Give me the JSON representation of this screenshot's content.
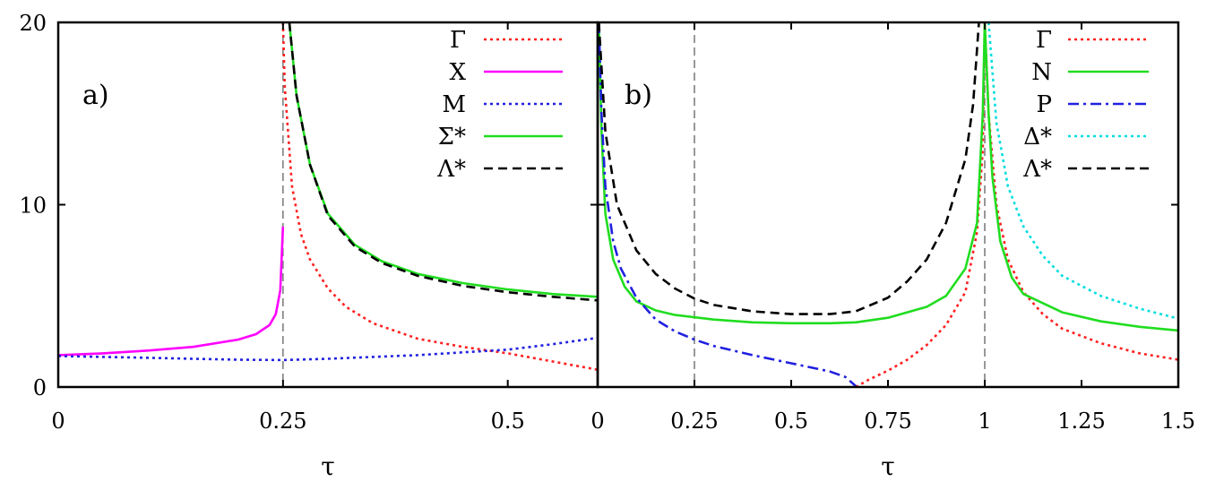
{
  "chart_data": [
    {
      "type": "line",
      "panel_label": "a)",
      "xlabel": "τ",
      "ylabel": "",
      "xlim": [
        0,
        0.6
      ],
      "ylim": [
        0,
        20
      ],
      "xticks": [
        {
          "value": 0,
          "label": "0"
        },
        {
          "value": 0.25,
          "label": "0.25"
        },
        {
          "value": 0.5,
          "label": "0.5"
        }
      ],
      "yticks": [
        {
          "value": 0,
          "label": "0"
        },
        {
          "value": 10,
          "label": "10"
        },
        {
          "value": 20,
          "label": "20"
        }
      ],
      "vlines": [
        0.25
      ],
      "legend_position": "top-right",
      "series": [
        {
          "name": "Γ",
          "color": "#ff2020",
          "dash": "dotted",
          "points": [
            [
              0.25,
              20
            ],
            [
              0.252,
              16.5
            ],
            [
              0.26,
              11.0
            ],
            [
              0.27,
              8.4
            ],
            [
              0.28,
              7.0
            ],
            [
              0.3,
              5.4
            ],
            [
              0.32,
              4.4
            ],
            [
              0.35,
              3.5
            ],
            [
              0.4,
              2.65
            ],
            [
              0.45,
              2.2
            ],
            [
              0.5,
              1.85
            ],
            [
              0.55,
              1.4
            ],
            [
              0.6,
              0.95
            ]
          ]
        },
        {
          "name": "X",
          "color": "#ff00ff",
          "dash": "solid",
          "points": [
            [
              0,
              1.75
            ],
            [
              0.05,
              1.85
            ],
            [
              0.1,
              2.0
            ],
            [
              0.15,
              2.2
            ],
            [
              0.2,
              2.6
            ],
            [
              0.22,
              2.9
            ],
            [
              0.235,
              3.4
            ],
            [
              0.242,
              4.0
            ],
            [
              0.247,
              5.3
            ],
            [
              0.25,
              8.8
            ]
          ]
        },
        {
          "name": "M",
          "color": "#2020e0",
          "dash": "dotted",
          "points": [
            [
              0,
              1.7
            ],
            [
              0.05,
              1.65
            ],
            [
              0.1,
              1.6
            ],
            [
              0.15,
              1.55
            ],
            [
              0.2,
              1.5
            ],
            [
              0.25,
              1.48
            ],
            [
              0.3,
              1.55
            ],
            [
              0.35,
              1.65
            ],
            [
              0.4,
              1.75
            ],
            [
              0.45,
              1.9
            ],
            [
              0.5,
              2.05
            ],
            [
              0.55,
              2.35
            ],
            [
              0.6,
              2.7
            ]
          ]
        },
        {
          "name": "Σ*",
          "color": "#20dd20",
          "dash": "solid",
          "points": [
            [
              0.257,
              20
            ],
            [
              0.265,
              16.0
            ],
            [
              0.28,
              12.2
            ],
            [
              0.3,
              9.5
            ],
            [
              0.33,
              7.8
            ],
            [
              0.36,
              6.9
            ],
            [
              0.4,
              6.2
            ],
            [
              0.45,
              5.7
            ],
            [
              0.5,
              5.35
            ],
            [
              0.55,
              5.1
            ],
            [
              0.6,
              4.95
            ]
          ]
        },
        {
          "name": "Λ*",
          "color": "#000000",
          "dash": "dashed",
          "points": [
            [
              0.257,
              20
            ],
            [
              0.265,
              16.0
            ],
            [
              0.28,
              12.2
            ],
            [
              0.3,
              9.4
            ],
            [
              0.33,
              7.7
            ],
            [
              0.36,
              6.8
            ],
            [
              0.4,
              6.1
            ],
            [
              0.45,
              5.55
            ],
            [
              0.5,
              5.2
            ],
            [
              0.55,
              4.95
            ],
            [
              0.6,
              4.75
            ]
          ]
        }
      ]
    },
    {
      "type": "line",
      "panel_label": "b)",
      "xlabel": "τ",
      "ylabel": "",
      "xlim": [
        0,
        1.5
      ],
      "ylim": [
        0,
        20
      ],
      "xticks": [
        {
          "value": 0,
          "label": "0"
        },
        {
          "value": 0.25,
          "label": "0.25"
        },
        {
          "value": 0.5,
          "label": "0.5"
        },
        {
          "value": 0.75,
          "label": "0.75"
        },
        {
          "value": 1,
          "label": "1"
        },
        {
          "value": 1.25,
          "label": "1.25"
        },
        {
          "value": 1.5,
          "label": "1.5"
        }
      ],
      "yticks": [
        {
          "value": 0,
          "label": ""
        },
        {
          "value": 10,
          "label": ""
        },
        {
          "value": 20,
          "label": ""
        }
      ],
      "vlines": [
        0.25,
        1.0
      ],
      "legend_position": "top-right",
      "series": [
        {
          "name": "Γ",
          "color": "#ff2020",
          "dash": "dotted",
          "points": [
            [
              0.667,
              0
            ],
            [
              0.7,
              0.4
            ],
            [
              0.75,
              0.9
            ],
            [
              0.8,
              1.5
            ],
            [
              0.85,
              2.3
            ],
            [
              0.9,
              3.4
            ],
            [
              0.95,
              5.2
            ],
            [
              0.98,
              8.5
            ],
            [
              0.995,
              13
            ],
            [
              1.0,
              20
            ],
            [
              1.01,
              15
            ],
            [
              1.03,
              10.0
            ],
            [
              1.06,
              7.0
            ],
            [
              1.1,
              5.2
            ],
            [
              1.15,
              4.0
            ],
            [
              1.2,
              3.2
            ],
            [
              1.3,
              2.4
            ],
            [
              1.4,
              1.85
            ],
            [
              1.5,
              1.5
            ]
          ]
        },
        {
          "name": "N",
          "color": "#20dd20",
          "dash": "solid",
          "points": [
            [
              0.003,
              20
            ],
            [
              0.01,
              14.0
            ],
            [
              0.02,
              9.5
            ],
            [
              0.04,
              7.0
            ],
            [
              0.07,
              5.5
            ],
            [
              0.1,
              4.7
            ],
            [
              0.15,
              4.2
            ],
            [
              0.2,
              3.95
            ],
            [
              0.3,
              3.7
            ],
            [
              0.4,
              3.55
            ],
            [
              0.5,
              3.5
            ],
            [
              0.6,
              3.5
            ],
            [
              0.667,
              3.55
            ],
            [
              0.75,
              3.8
            ],
            [
              0.85,
              4.4
            ],
            [
              0.9,
              5.0
            ],
            [
              0.95,
              6.5
            ],
            [
              0.98,
              9.0
            ],
            [
              0.995,
              15
            ],
            [
              1.0,
              20
            ],
            [
              1.01,
              15
            ],
            [
              1.02,
              11.5
            ],
            [
              1.04,
              8.0
            ],
            [
              1.07,
              6.0
            ],
            [
              1.1,
              5.1
            ],
            [
              1.2,
              4.1
            ],
            [
              1.3,
              3.6
            ],
            [
              1.4,
              3.3
            ],
            [
              1.5,
              3.1
            ]
          ]
        },
        {
          "name": "P",
          "color": "#2020e0",
          "dash": "dashdot",
          "points": [
            [
              0.003,
              20
            ],
            [
              0.01,
              15.0
            ],
            [
              0.02,
              11.0
            ],
            [
              0.04,
              8.0
            ],
            [
              0.06,
              6.5
            ],
            [
              0.1,
              4.9
            ],
            [
              0.15,
              3.7
            ],
            [
              0.2,
              3.05
            ],
            [
              0.25,
              2.6
            ],
            [
              0.3,
              2.25
            ],
            [
              0.4,
              1.75
            ],
            [
              0.5,
              1.3
            ],
            [
              0.6,
              0.85
            ],
            [
              0.64,
              0.55
            ],
            [
              0.667,
              0.05
            ]
          ]
        },
        {
          "name": "Δ*",
          "color": "#00dddd",
          "dash": "dotted",
          "points": [
            [
              1.01,
              20
            ],
            [
              1.03,
              14.5
            ],
            [
              1.06,
              11.0
            ],
            [
              1.1,
              8.8
            ],
            [
              1.15,
              7.2
            ],
            [
              1.2,
              6.1
            ],
            [
              1.3,
              5.0
            ],
            [
              1.4,
              4.3
            ],
            [
              1.5,
              3.75
            ]
          ]
        },
        {
          "name": "Λ*",
          "color": "#000000",
          "dash": "dashed",
          "points": [
            [
              0.003,
              20
            ],
            [
              0.02,
              14.0
            ],
            [
              0.05,
              10.0
            ],
            [
              0.1,
              7.5
            ],
            [
              0.15,
              6.2
            ],
            [
              0.2,
              5.4
            ],
            [
              0.25,
              4.85
            ],
            [
              0.3,
              4.5
            ],
            [
              0.4,
              4.15
            ],
            [
              0.5,
              4.0
            ],
            [
              0.6,
              4.0
            ],
            [
              0.667,
              4.15
            ],
            [
              0.75,
              4.9
            ],
            [
              0.8,
              5.8
            ],
            [
              0.85,
              7.0
            ],
            [
              0.9,
              9.0
            ],
            [
              0.95,
              12.5
            ],
            [
              0.97,
              15.5
            ],
            [
              0.985,
              20
            ]
          ]
        }
      ]
    }
  ]
}
